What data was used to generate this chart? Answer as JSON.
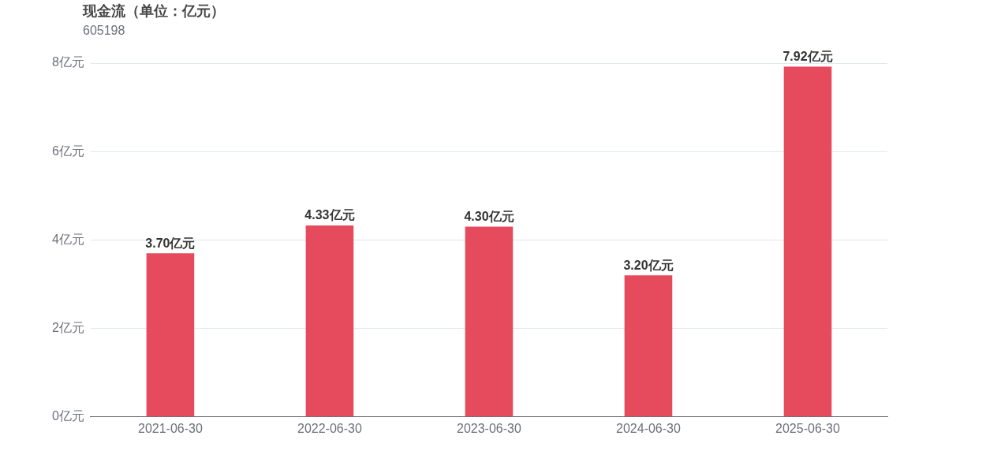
{
  "chart_data": {
    "type": "bar",
    "title": "现金流（单位：亿元）",
    "subtitle": "605198",
    "categories": [
      "2021-06-30",
      "2022-06-30",
      "2023-06-30",
      "2024-06-30",
      "2025-06-30"
    ],
    "values": [
      3.7,
      4.33,
      4.3,
      3.2,
      7.92
    ],
    "value_labels": [
      "3.70亿元",
      "4.33亿元",
      "4.30亿元",
      "3.20亿元",
      "7.92亿元"
    ],
    "color": "#e64b5d",
    "ylim": [
      0,
      8
    ],
    "yticks": [
      {
        "value": 0,
        "label": "0亿元"
      },
      {
        "value": 2,
        "label": "2亿元"
      },
      {
        "value": 4,
        "label": "4亿元"
      },
      {
        "value": 6,
        "label": "6亿元"
      },
      {
        "value": 8,
        "label": "8亿元"
      }
    ],
    "grid": "y",
    "legend": false
  }
}
